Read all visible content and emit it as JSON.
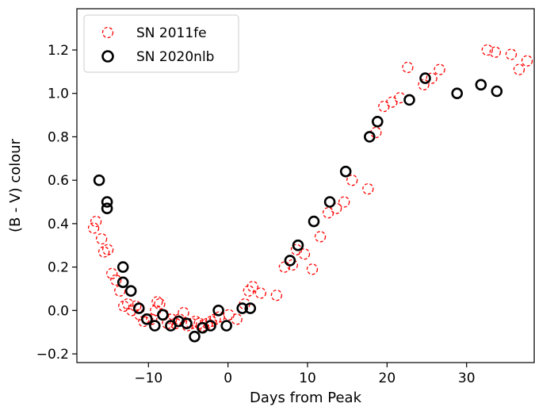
{
  "chart_data": {
    "type": "scatter",
    "title": "",
    "xlabel": "Days from Peak",
    "ylabel": "(B - V) colour",
    "xlim": [
      -19,
      38.5
    ],
    "ylim": [
      -0.24,
      1.39
    ],
    "xticks": [
      -10,
      0,
      10,
      20,
      30
    ],
    "xtick_labels": [
      "−10",
      "0",
      "10",
      "20",
      "30"
    ],
    "yticks": [
      -0.2,
      0.0,
      0.2,
      0.4,
      0.6,
      0.8,
      1.0,
      1.2
    ],
    "ytick_labels": [
      "−0.2",
      "0.0",
      "0.2",
      "0.4",
      "0.6",
      "0.8",
      "1.0",
      "1.2"
    ],
    "grid": false,
    "legend_position": "top-left",
    "series": [
      {
        "name": "SN 2011fe",
        "color": "#ff0000",
        "marker": "dashed-open-circle",
        "points": [
          [
            -16.9,
            0.38
          ],
          [
            -16.6,
            0.41
          ],
          [
            -15.9,
            0.33
          ],
          [
            -15.6,
            0.27
          ],
          [
            -15.1,
            0.28
          ],
          [
            -14.6,
            0.17
          ],
          [
            -14.1,
            0.14
          ],
          [
            -13.6,
            0.09
          ],
          [
            -13.1,
            0.02
          ],
          [
            -12.6,
            0.03
          ],
          [
            -12.1,
            0.0
          ],
          [
            -11.6,
            0.02
          ],
          [
            -11.1,
            -0.02
          ],
          [
            -10.6,
            -0.05
          ],
          [
            -10.1,
            -0.04
          ],
          [
            -9.6,
            -0.04
          ],
          [
            -9.1,
            0.0
          ],
          [
            -8.9,
            0.04
          ],
          [
            -8.6,
            0.03
          ],
          [
            -8.1,
            -0.02
          ],
          [
            -7.6,
            -0.06
          ],
          [
            -7.1,
            -0.04
          ],
          [
            -6.6,
            -0.06
          ],
          [
            -6.1,
            -0.04
          ],
          [
            -5.6,
            -0.01
          ],
          [
            -5.1,
            -0.07
          ],
          [
            -4.6,
            -0.06
          ],
          [
            -4.1,
            -0.05
          ],
          [
            -3.6,
            -0.06
          ],
          [
            -3.1,
            -0.07
          ],
          [
            -2.6,
            -0.06
          ],
          [
            -2.1,
            -0.05
          ],
          [
            -1.6,
            -0.04
          ],
          [
            -1.1,
            -0.03
          ],
          [
            0.1,
            -0.02
          ],
          [
            1.1,
            -0.04
          ],
          [
            2.1,
            0.03
          ],
          [
            2.6,
            0.09
          ],
          [
            3.1,
            0.11
          ],
          [
            4.1,
            0.08
          ],
          [
            6.1,
            0.07
          ],
          [
            7.1,
            0.2
          ],
          [
            8.1,
            0.21
          ],
          [
            8.6,
            0.28
          ],
          [
            9.6,
            0.26
          ],
          [
            10.6,
            0.19
          ],
          [
            11.6,
            0.34
          ],
          [
            12.6,
            0.45
          ],
          [
            13.6,
            0.47
          ],
          [
            14.6,
            0.5
          ],
          [
            15.6,
            0.6
          ],
          [
            17.6,
            0.56
          ],
          [
            18.6,
            0.82
          ],
          [
            19.6,
            0.94
          ],
          [
            20.6,
            0.96
          ],
          [
            21.6,
            0.98
          ],
          [
            22.6,
            1.12
          ],
          [
            24.6,
            1.04
          ],
          [
            25.6,
            1.07
          ],
          [
            26.6,
            1.11
          ],
          [
            32.6,
            1.2
          ],
          [
            33.6,
            1.19
          ],
          [
            35.6,
            1.18
          ],
          [
            36.6,
            1.11
          ],
          [
            37.6,
            1.15
          ]
        ]
      },
      {
        "name": "SN 2020nlb",
        "color": "#000000",
        "marker": "open-circle",
        "points": [
          [
            -16.2,
            0.6
          ],
          [
            -15.2,
            0.5
          ],
          [
            -15.2,
            0.47
          ],
          [
            -13.2,
            0.2
          ],
          [
            -13.2,
            0.13
          ],
          [
            -12.2,
            0.09
          ],
          [
            -11.2,
            0.01
          ],
          [
            -10.2,
            -0.04
          ],
          [
            -9.2,
            -0.07
          ],
          [
            -8.2,
            -0.02
          ],
          [
            -7.2,
            -0.07
          ],
          [
            -6.2,
            -0.05
          ],
          [
            -5.2,
            -0.06
          ],
          [
            -4.2,
            -0.12
          ],
          [
            -3.2,
            -0.08
          ],
          [
            -2.2,
            -0.07
          ],
          [
            -1.2,
            0.0
          ],
          [
            -0.2,
            -0.07
          ],
          [
            1.8,
            0.01
          ],
          [
            2.8,
            0.01
          ],
          [
            7.8,
            0.23
          ],
          [
            8.8,
            0.3
          ],
          [
            10.8,
            0.41
          ],
          [
            12.8,
            0.5
          ],
          [
            14.8,
            0.64
          ],
          [
            17.8,
            0.8
          ],
          [
            18.8,
            0.87
          ],
          [
            22.8,
            0.97
          ],
          [
            24.8,
            1.07
          ],
          [
            28.8,
            1.0
          ],
          [
            31.8,
            1.04
          ],
          [
            33.8,
            1.01
          ]
        ]
      }
    ]
  }
}
